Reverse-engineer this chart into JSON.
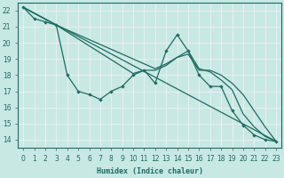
{
  "xlabel": "Humidex (Indice chaleur)",
  "xlim": [
    -0.5,
    23.5
  ],
  "ylim": [
    13.5,
    22.5
  ],
  "xticks": [
    0,
    1,
    2,
    3,
    4,
    5,
    6,
    7,
    8,
    9,
    10,
    11,
    12,
    13,
    14,
    15,
    16,
    17,
    18,
    19,
    20,
    21,
    22,
    23
  ],
  "yticks": [
    14,
    15,
    16,
    17,
    18,
    19,
    20,
    21,
    22
  ],
  "bg_color": "#c8e8e4",
  "grid_color": "#f0f0f0",
  "line_color": "#1e6b60",
  "lines": [
    {
      "x": [
        0,
        1,
        2,
        3,
        4,
        5,
        6,
        7,
        8,
        9,
        10,
        11,
        12,
        13,
        14,
        15,
        16,
        17,
        18,
        19,
        20,
        21,
        22,
        23
      ],
      "y": [
        22.2,
        21.5,
        21.3,
        21.1,
        18.0,
        17.0,
        16.8,
        16.5,
        17.0,
        17.3,
        18.0,
        18.3,
        17.5,
        19.5,
        20.5,
        19.5,
        18.0,
        17.3,
        17.3,
        15.8,
        14.9,
        14.3,
        14.0,
        13.9
      ],
      "marker": true
    },
    {
      "x": [
        0,
        23
      ],
      "y": [
        22.2,
        13.9
      ],
      "marker": false
    },
    {
      "x": [
        0,
        3,
        10,
        11,
        12,
        13,
        14,
        15,
        16,
        17,
        18,
        19,
        20,
        21,
        22,
        23
      ],
      "y": [
        22.2,
        21.1,
        18.1,
        18.3,
        18.3,
        18.6,
        19.1,
        19.3,
        18.3,
        18.3,
        18.0,
        17.5,
        16.8,
        15.8,
        14.8,
        13.9
      ],
      "marker": false
    },
    {
      "x": [
        0,
        3,
        12,
        13,
        14,
        15,
        16,
        17,
        18,
        19,
        20,
        21,
        22,
        23
      ],
      "y": [
        22.2,
        21.1,
        18.4,
        18.7,
        19.1,
        19.5,
        18.4,
        18.2,
        17.7,
        17.1,
        15.6,
        14.8,
        14.2,
        13.9
      ],
      "marker": false
    }
  ]
}
